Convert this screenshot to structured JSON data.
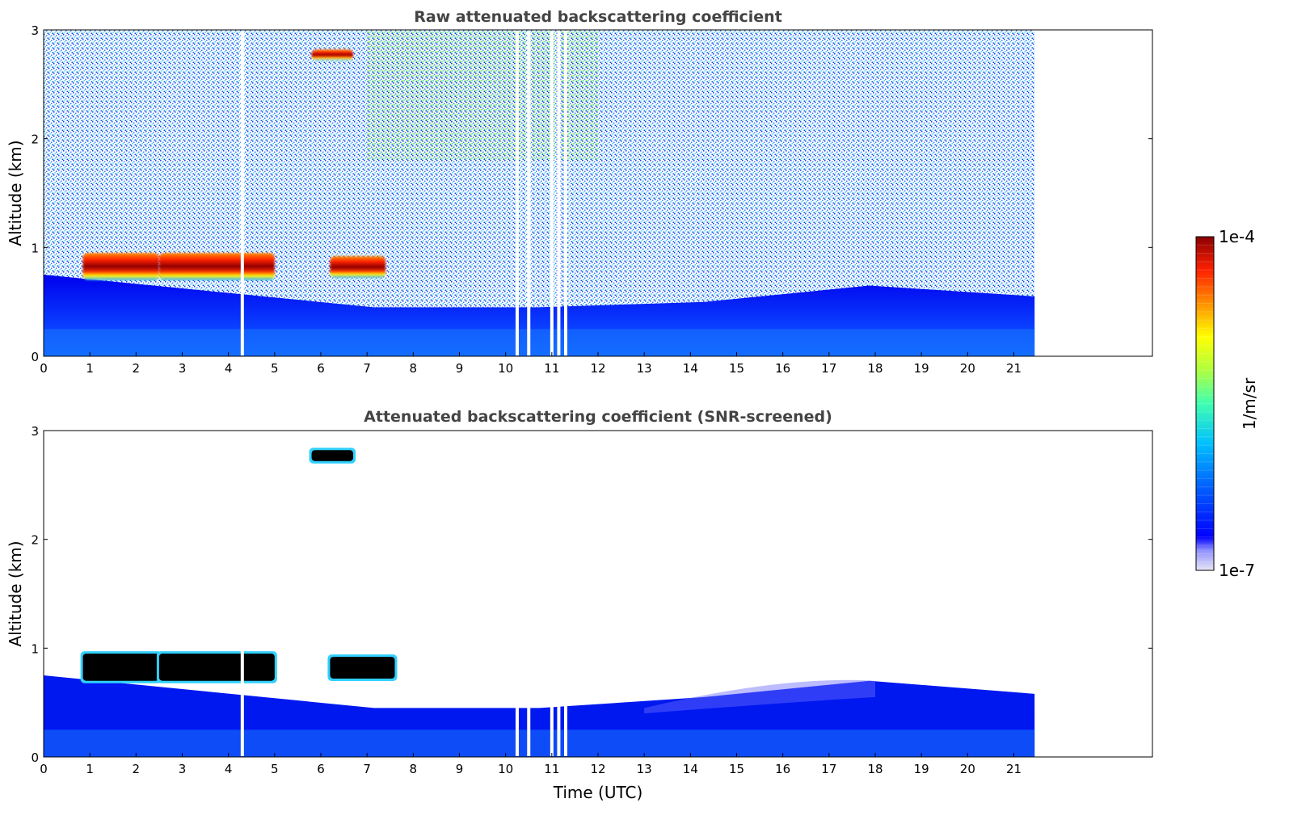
{
  "chart_data": [
    {
      "type": "heatmap",
      "title": "Raw attenuated backscattering coefficient",
      "xlabel": "",
      "ylabel": "Altitude (km)",
      "xlim": [
        0,
        24
      ],
      "ylim": [
        0,
        3
      ],
      "xticks": [
        "0",
        "1",
        "2",
        "3",
        "4",
        "5",
        "6",
        "7",
        "8",
        "9",
        "10",
        "11",
        "12",
        "13",
        "14",
        "15",
        "16",
        "17",
        "18",
        "19",
        "20",
        "21"
      ],
      "yticks": [
        "0",
        "1",
        "2",
        "3"
      ],
      "data_end_x": 21.45,
      "features": [
        {
          "kind": "cloud",
          "x": [
            0.85,
            2.5
          ],
          "y": [
            0.7,
            0.95
          ],
          "value": "1e-4"
        },
        {
          "kind": "cloud",
          "x": [
            2.5,
            5.0
          ],
          "y": [
            0.7,
            0.95
          ],
          "value": "1e-4"
        },
        {
          "kind": "cloud",
          "x": [
            6.2,
            7.4
          ],
          "y": [
            0.72,
            0.92
          ],
          "value": "1e-4"
        },
        {
          "kind": "cloud",
          "x": [
            5.8,
            6.7
          ],
          "y": [
            2.72,
            2.82
          ],
          "value": "1e-4"
        },
        {
          "kind": "boundary_layer",
          "x": [
            0,
            21.45
          ],
          "top_y": [
            0.75,
            0.6,
            0.45,
            0.45,
            0.5,
            0.65,
            0.55
          ]
        }
      ],
      "gaps_x": [
        4.3,
        10.25,
        10.5,
        11.0,
        11.15,
        11.3
      ]
    },
    {
      "type": "heatmap",
      "title": "Attenuated backscattering coefficient (SNR-screened)",
      "xlabel": "Time (UTC)",
      "ylabel": "Altitude (km)",
      "xlim": [
        0,
        24
      ],
      "ylim": [
        0,
        3
      ],
      "xticks": [
        "0",
        "1",
        "2",
        "3",
        "4",
        "5",
        "6",
        "7",
        "8",
        "9",
        "10",
        "11",
        "12",
        "13",
        "14",
        "15",
        "16",
        "17",
        "18",
        "19",
        "20",
        "21"
      ],
      "yticks": [
        "0",
        "1",
        "2",
        "3"
      ],
      "data_end_x": 21.45,
      "features": [
        {
          "kind": "cloud",
          "x": [
            0.85,
            2.5
          ],
          "y": [
            0.7,
            0.95
          ],
          "value": "saturated"
        },
        {
          "kind": "cloud",
          "x": [
            2.5,
            5.0
          ],
          "y": [
            0.7,
            0.95
          ],
          "value": "saturated"
        },
        {
          "kind": "cloud",
          "x": [
            6.2,
            7.6
          ],
          "y": [
            0.72,
            0.92
          ],
          "value": "saturated"
        },
        {
          "kind": "cloud",
          "x": [
            5.8,
            6.7
          ],
          "y": [
            2.72,
            2.82
          ],
          "value": "saturated"
        },
        {
          "kind": "boundary_layer",
          "x": [
            0,
            21.45
          ],
          "top_y": [
            0.75,
            0.6,
            0.45,
            0.45,
            0.55,
            0.7,
            0.58
          ]
        }
      ],
      "gaps_x": [
        4.3,
        10.25,
        10.5,
        11.0,
        11.15,
        11.3
      ]
    }
  ],
  "colorbar": {
    "label": "1/m/sr",
    "max_label": "1e-4",
    "min_label": "1e-7",
    "scale": "log",
    "colormap": [
      "#e6e6f5",
      "#9090ff",
      "#0000ff",
      "#0060ff",
      "#00c0ff",
      "#40ffb0",
      "#b0ff40",
      "#ffff00",
      "#ff9000",
      "#ff2000",
      "#8b0000"
    ]
  }
}
